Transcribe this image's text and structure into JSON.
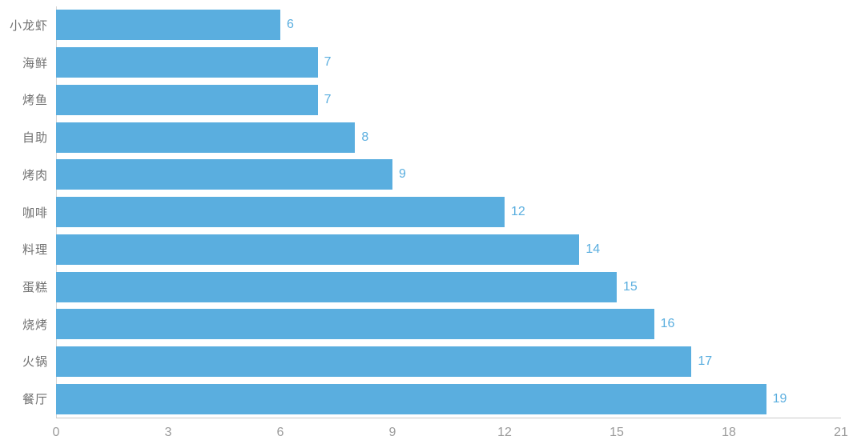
{
  "chart_data": {
    "type": "bar",
    "orientation": "horizontal",
    "title": "",
    "xlabel": "",
    "ylabel": "",
    "categories": [
      "小龙虾",
      "海鲜",
      "烤鱼",
      "自助",
      "烤肉",
      "咖啡",
      "料理",
      "蛋糕",
      "烧烤",
      "火锅",
      "餐厅"
    ],
    "values": [
      6,
      7,
      7,
      8,
      9,
      12,
      14,
      15,
      16,
      17,
      19
    ],
    "value_labels": [
      "6",
      "7",
      "7",
      "8",
      "9",
      "12",
      "14",
      "15",
      "16",
      "17",
      "19"
    ],
    "xlim": [
      0,
      21
    ],
    "xticks": [
      "0",
      "3",
      "6",
      "9",
      "12",
      "15",
      "18",
      "21"
    ],
    "grid": false,
    "legend": "none",
    "colors": {
      "bar": "#5aaedf",
      "value_label": "#5aaedf",
      "category_label": "#707070",
      "tick_label": "#9b9b9b",
      "axis_line": "#c9c9c9"
    }
  }
}
